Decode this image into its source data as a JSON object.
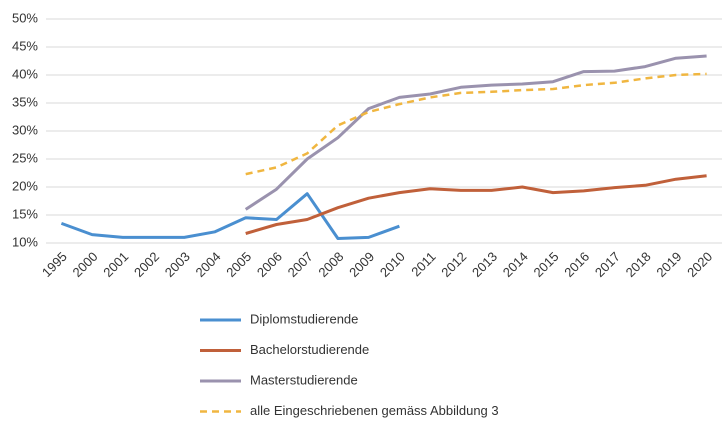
{
  "chart_data": {
    "type": "line",
    "categories": [
      "1995",
      "2000",
      "2001",
      "2002",
      "2003",
      "2004",
      "2005",
      "2006",
      "2007",
      "2008",
      "2009",
      "2010",
      "2011",
      "2012",
      "2013",
      "2014",
      "2015",
      "2016",
      "2017",
      "2018",
      "2019",
      "2020"
    ],
    "series": [
      {
        "name": "Diplomstudierende",
        "color": "#4a8fd0",
        "dashed": false,
        "values": [
          13.5,
          11.5,
          11.0,
          11.0,
          11.0,
          12.0,
          14.5,
          14.2,
          18.8,
          10.8,
          11.0,
          13.0,
          null,
          null,
          null,
          null,
          null,
          null,
          null,
          null,
          null,
          null
        ]
      },
      {
        "name": "Bachelorstudierende",
        "color": "#c0603a",
        "dashed": false,
        "values": [
          null,
          null,
          null,
          null,
          null,
          null,
          11.7,
          13.3,
          14.2,
          16.3,
          18.0,
          19.0,
          19.7,
          19.4,
          19.4,
          20.0,
          19.0,
          19.3,
          19.9,
          20.3,
          21.4,
          22.0
        ]
      },
      {
        "name": "Masterstudierende",
        "color": "#9a92ae",
        "dashed": false,
        "values": [
          null,
          null,
          null,
          null,
          null,
          null,
          16.0,
          19.6,
          25.0,
          28.8,
          34.0,
          36.0,
          36.6,
          37.8,
          38.2,
          38.4,
          38.8,
          40.6,
          40.7,
          41.5,
          43.0,
          43.4
        ]
      },
      {
        "name": "alle Eingeschriebenen gemäss Abbildung 3",
        "color": "#f0b640",
        "dashed": true,
        "values": [
          null,
          null,
          null,
          null,
          null,
          null,
          22.3,
          23.5,
          26.0,
          31.0,
          33.4,
          34.8,
          36.0,
          36.8,
          37.0,
          37.3,
          37.5,
          38.2,
          38.6,
          39.4,
          40.0,
          40.2
        ]
      }
    ],
    "ylim": [
      10,
      50
    ],
    "yticks": [
      {
        "value": 10,
        "label": "10%"
      },
      {
        "value": 15,
        "label": "15%"
      },
      {
        "value": 20,
        "label": "20%"
      },
      {
        "value": 25,
        "label": "25%"
      },
      {
        "value": 30,
        "label": "30%"
      },
      {
        "value": 35,
        "label": "35%"
      },
      {
        "value": 40,
        "label": "40%"
      },
      {
        "value": 45,
        "label": "45%"
      },
      {
        "value": 50,
        "label": "50%"
      }
    ],
    "grid": true,
    "legend": "bottom"
  }
}
